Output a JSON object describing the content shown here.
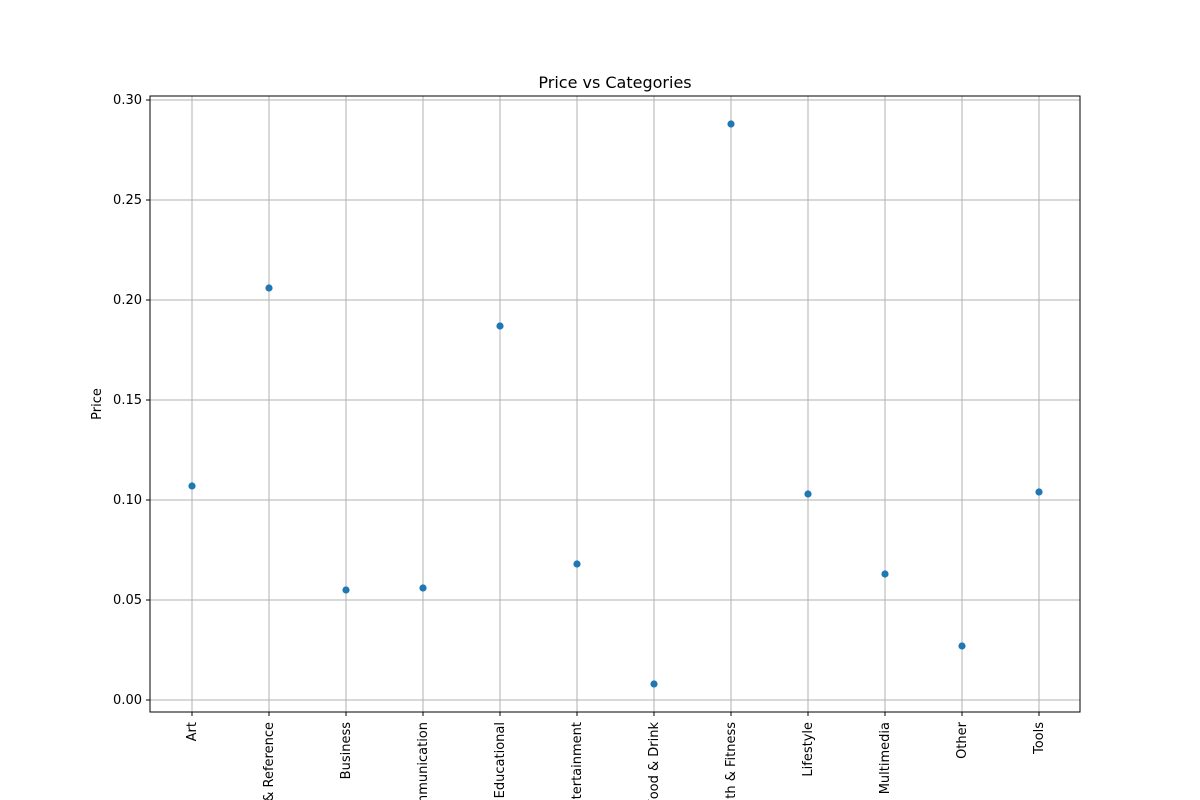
{
  "chart_data": {
    "type": "scatter",
    "title": "Price vs Categories",
    "xlabel": "",
    "ylabel": "Price",
    "categories": [
      "Art",
      "Book & Reference",
      "Business",
      "Communication",
      "Educational",
      "Entertainment",
      "Food & Drink",
      "Health & Fitness",
      "Lifestyle",
      "Multimedia",
      "Other",
      "Tools"
    ],
    "values": [
      0.107,
      0.206,
      0.055,
      0.056,
      0.187,
      0.068,
      0.008,
      0.288,
      0.103,
      0.063,
      0.027,
      0.104
    ],
    "ylim": [
      -0.006,
      0.302
    ],
    "yticks": [
      0.0,
      0.05,
      0.1,
      0.15,
      0.2,
      0.25,
      0.3
    ],
    "ytick_labels": [
      "0.00",
      "0.05",
      "0.10",
      "0.15",
      "0.20",
      "0.25",
      "0.30"
    ],
    "grid": true,
    "point_color": "#1f77b4"
  }
}
